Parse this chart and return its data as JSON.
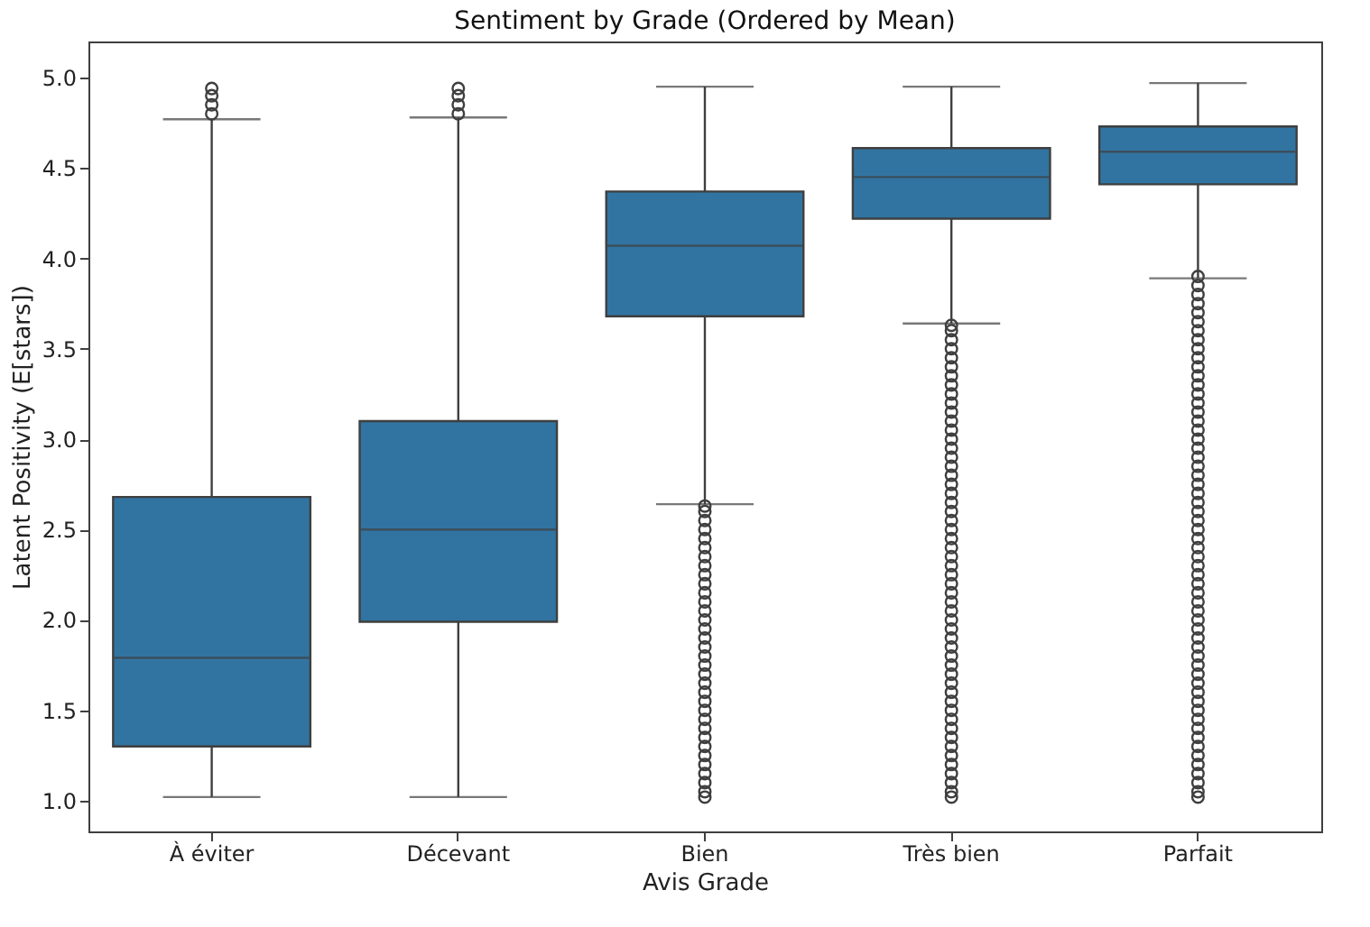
{
  "chart_data": {
    "type": "box",
    "title": "Sentiment by Grade (Ordered by Mean)",
    "xlabel": "Avis Grade",
    "ylabel": "Latent Positivity (E[stars])",
    "categories": [
      "À éviter",
      "Décevant",
      "Bien",
      "Très bien",
      "Parfait"
    ],
    "color": "#3274a1",
    "boxes": [
      {
        "low": 1.02,
        "q1": 1.3,
        "median": 1.79,
        "q3": 2.68,
        "high": 4.77,
        "outliers": [
          4.8,
          4.85,
          4.9,
          4.94
        ]
      },
      {
        "low": 1.02,
        "q1": 1.99,
        "median": 2.5,
        "q3": 3.1,
        "high": 4.78,
        "outliers": [
          4.8,
          4.85,
          4.9,
          4.94
        ]
      },
      {
        "low": 2.64,
        "q1": 3.68,
        "median": 4.07,
        "q3": 4.37,
        "high": 4.95,
        "outliers": [
          1.02,
          1.05,
          1.1,
          1.15,
          1.2,
          1.25,
          1.3,
          1.35,
          1.4,
          1.45,
          1.5,
          1.55,
          1.6,
          1.65,
          1.7,
          1.75,
          1.8,
          1.85,
          1.9,
          1.95,
          2.0,
          2.05,
          2.1,
          2.15,
          2.2,
          2.25,
          2.3,
          2.35,
          2.4,
          2.45,
          2.5,
          2.55,
          2.6,
          2.63
        ]
      },
      {
        "low": 3.64,
        "q1": 4.22,
        "median": 4.45,
        "q3": 4.61,
        "high": 4.95,
        "outliers": [
          1.02,
          1.05,
          1.1,
          1.15,
          1.2,
          1.25,
          1.3,
          1.35,
          1.4,
          1.45,
          1.5,
          1.55,
          1.6,
          1.65,
          1.7,
          1.75,
          1.8,
          1.85,
          1.9,
          1.95,
          2.0,
          2.05,
          2.1,
          2.15,
          2.2,
          2.25,
          2.3,
          2.35,
          2.4,
          2.45,
          2.5,
          2.55,
          2.6,
          2.65,
          2.7,
          2.75,
          2.8,
          2.85,
          2.9,
          2.95,
          3.0,
          3.05,
          3.1,
          3.15,
          3.2,
          3.25,
          3.3,
          3.35,
          3.4,
          3.45,
          3.5,
          3.55,
          3.6,
          3.63
        ]
      },
      {
        "low": 3.89,
        "q1": 4.41,
        "median": 4.59,
        "q3": 4.73,
        "high": 4.97,
        "outliers": [
          1.02,
          1.05,
          1.1,
          1.15,
          1.2,
          1.25,
          1.3,
          1.35,
          1.4,
          1.45,
          1.5,
          1.55,
          1.6,
          1.65,
          1.7,
          1.75,
          1.8,
          1.85,
          1.9,
          1.95,
          2.0,
          2.05,
          2.1,
          2.15,
          2.2,
          2.25,
          2.3,
          2.35,
          2.4,
          2.45,
          2.5,
          2.55,
          2.6,
          2.65,
          2.7,
          2.75,
          2.8,
          2.85,
          2.9,
          2.95,
          3.0,
          3.05,
          3.1,
          3.15,
          3.2,
          3.25,
          3.3,
          3.35,
          3.4,
          3.45,
          3.5,
          3.55,
          3.6,
          3.65,
          3.7,
          3.75,
          3.8,
          3.85,
          3.9
        ]
      }
    ],
    "ylim": [
      0.83,
      5.2
    ],
    "yticks": [
      {
        "value": 1,
        "label": "1.0"
      },
      {
        "value": 1.5,
        "label": "1.5"
      },
      {
        "value": 2,
        "label": "2.0"
      },
      {
        "value": 2.5,
        "label": "2.5"
      },
      {
        "value": 3,
        "label": "3.0"
      },
      {
        "value": 3.5,
        "label": "3.5"
      },
      {
        "value": 4,
        "label": "4.0"
      },
      {
        "value": 4.5,
        "label": "4.5"
      },
      {
        "value": 5,
        "label": "5.0"
      }
    ]
  }
}
